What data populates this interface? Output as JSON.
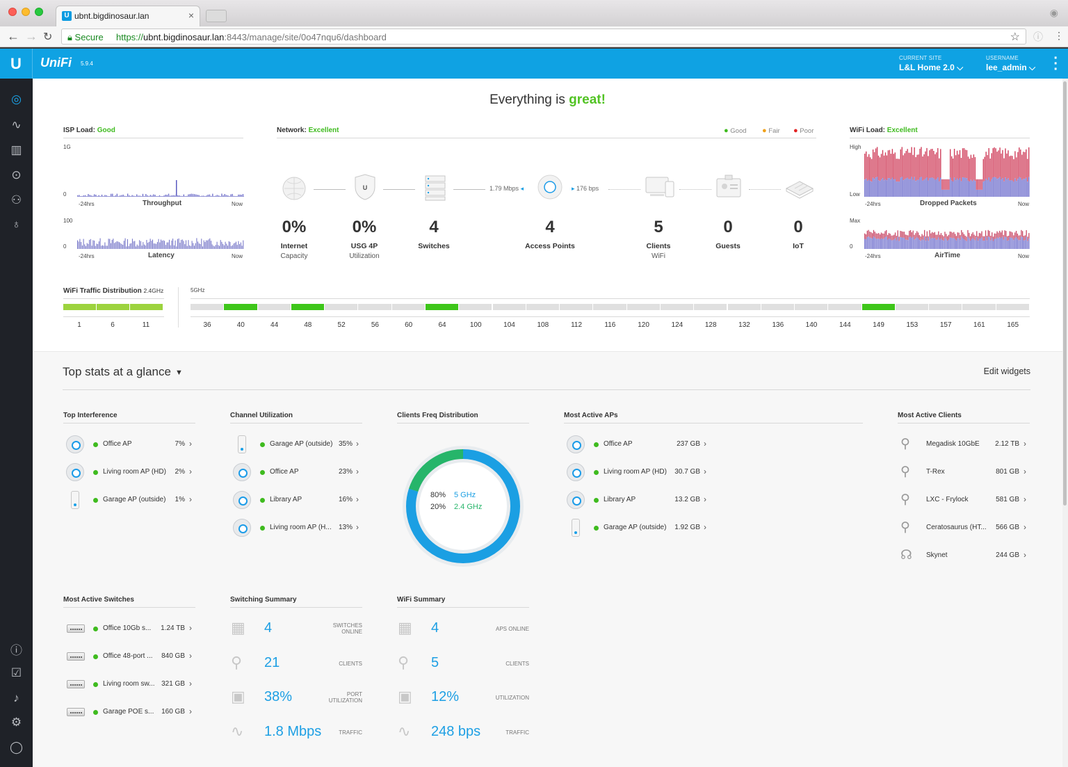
{
  "browser": {
    "tab_title": "ubnt.bigdinosaur.lan",
    "tab_favicon": "U",
    "secure_label": "Secure",
    "url_scheme": "https://",
    "url_host": "ubnt.bigdinosaur.lan",
    "url_rest": ":8443/manage/site/0o47nqu6/dashboard"
  },
  "header": {
    "logo": "U",
    "brand": "UniFi",
    "version": "5.9.4",
    "current_site_label": "CURRENT SITE",
    "current_site_value": "L&L Home 2.0",
    "username_label": "USERNAME",
    "username_value": "lee_admin"
  },
  "status": {
    "headline_prefix": "Everything is",
    "headline_word": "great!"
  },
  "isp": {
    "title": "ISP Load:",
    "status": "Good",
    "throughput_max": "1G",
    "throughput_min": "0",
    "throughput_label": "Throughput",
    "latency_max": "100",
    "latency_min": "0",
    "latency_label": "Latency",
    "start": "-24hrs",
    "end": "Now"
  },
  "network": {
    "title": "Network:",
    "status": "Excellent",
    "legend": [
      {
        "label": "Good",
        "color": "#3fbb1f"
      },
      {
        "label": "Fair",
        "color": "#f0a11b"
      },
      {
        "label": "Poor",
        "color": "#e22323"
      }
    ],
    "down_speed": "1.79 Mbps",
    "up_speed": "176 bps",
    "stats": [
      {
        "value": "0%",
        "label": "Internet",
        "sub": "Capacity"
      },
      {
        "value": "0%",
        "label": "USG 4P",
        "sub": "Utilization"
      },
      {
        "value": "4",
        "label": "Switches",
        "sub": ""
      },
      {
        "value": "4",
        "label": "Access Points",
        "sub": ""
      },
      {
        "value": "5",
        "label": "Clients",
        "sub": "WiFi"
      },
      {
        "value": "0",
        "label": "Guests",
        "sub": ""
      },
      {
        "value": "0",
        "label": "IoT",
        "sub": ""
      }
    ]
  },
  "wifi_load": {
    "title": "WiFi Load:",
    "status": "Excellent",
    "dropped_max": "High",
    "dropped_min": "Low",
    "dropped_label": "Dropped Packets",
    "airtime_max": "Max",
    "airtime_min": "0",
    "airtime_label": "AirTime",
    "start": "-24hrs",
    "end": "Now"
  },
  "traffic_dist": {
    "title": "WiFi Traffic Distribution",
    "band24_label": "2.4GHz",
    "band5_label": "5GHz",
    "channels_24": [
      "1",
      "6",
      "11"
    ],
    "channels_5": [
      "36",
      "40",
      "44",
      "48",
      "52",
      "56",
      "60",
      "64",
      "100",
      "104",
      "108",
      "112",
      "116",
      "120",
      "124",
      "128",
      "132",
      "136",
      "140",
      "144",
      "149",
      "153",
      "157",
      "161",
      "165"
    ],
    "active_5": [
      "40",
      "48",
      "64",
      "149"
    ]
  },
  "stats": {
    "title": "Top stats at a glance",
    "edit": "Edit widgets",
    "top_interference": {
      "title": "Top Interference",
      "rows": [
        {
          "icon": "ap",
          "name": "Office AP",
          "value": "7%"
        },
        {
          "icon": "ap",
          "name": "Living room AP (HD)",
          "value": "2%"
        },
        {
          "icon": "outdoor",
          "name": "Garage AP (outside)",
          "value": "1%"
        }
      ]
    },
    "channel_util": {
      "title": "Channel Utilization",
      "rows": [
        {
          "icon": "outdoor",
          "name": "Garage AP (outside)",
          "value": "35%"
        },
        {
          "icon": "ap",
          "name": "Office AP",
          "value": "23%"
        },
        {
          "icon": "ap",
          "name": "Library AP",
          "value": "16%"
        },
        {
          "icon": "ap",
          "name": "Living room AP (H...",
          "value": "13%"
        }
      ]
    },
    "freq_dist": {
      "title": "Clients Freq Distribution",
      "rows": [
        {
          "pct": "80%",
          "band": "5 GHz"
        },
        {
          "pct": "20%",
          "band": "2.4 GHz"
        }
      ],
      "share_5ghz": 0.8,
      "color_5": "#1b9fe3",
      "color_24": "#26b56a"
    },
    "active_aps": {
      "title": "Most Active APs",
      "rows": [
        {
          "icon": "ap",
          "name": "Office AP",
          "value": "237 GB"
        },
        {
          "icon": "ap",
          "name": "Living room AP (HD)",
          "value": "30.7 GB"
        },
        {
          "icon": "ap",
          "name": "Library AP",
          "value": "13.2 GB"
        },
        {
          "icon": "outdoor",
          "name": "Garage AP (outside)",
          "value": "1.92 GB"
        }
      ]
    },
    "active_clients": {
      "title": "Most Active Clients",
      "rows": [
        {
          "icon": "user-wired-icon",
          "name": "Megadisk 10GbE",
          "value": "2.12 TB"
        },
        {
          "icon": "user-wired-icon",
          "name": "T-Rex",
          "value": "801 GB"
        },
        {
          "icon": "user-wired-icon",
          "name": "LXC - Frylock",
          "value": "581 GB"
        },
        {
          "icon": "user-wired-icon",
          "name": "Ceratosaurus (HT...",
          "value": "566 GB"
        },
        {
          "icon": "user-wireless-icon",
          "name": "Skynet",
          "value": "244 GB"
        }
      ]
    },
    "active_switches": {
      "title": "Most Active Switches",
      "rows": [
        {
          "name": "Office 10Gb s...",
          "value": "1.24 TB"
        },
        {
          "name": "Office 48-port ...",
          "value": "840 GB"
        },
        {
          "name": "Living room sw...",
          "value": "321 GB"
        },
        {
          "name": "Garage POE s...",
          "value": "160 GB"
        }
      ]
    },
    "switching_summary": {
      "title": "Switching Summary",
      "rows": [
        {
          "value": "4",
          "label_1": "SWITCHES",
          "label_2": "ONLINE"
        },
        {
          "value": "21",
          "label_1": "CLIENTS",
          "label_2": ""
        },
        {
          "value": "38%",
          "label_1": "PORT",
          "label_2": "UTILIZATION"
        },
        {
          "value": "1.8 Mbps",
          "label_1": "TRAFFIC",
          "label_2": ""
        }
      ]
    },
    "wifi_summary": {
      "title": "WiFi Summary",
      "rows": [
        {
          "value": "4",
          "label_1": "APS ONLINE",
          "label_2": ""
        },
        {
          "value": "5",
          "label_1": "CLIENTS",
          "label_2": ""
        },
        {
          "value": "12%",
          "label_1": "UTILIZATION",
          "label_2": ""
        },
        {
          "value": "248 bps",
          "label_1": "TRAFFIC",
          "label_2": ""
        }
      ]
    }
  }
}
